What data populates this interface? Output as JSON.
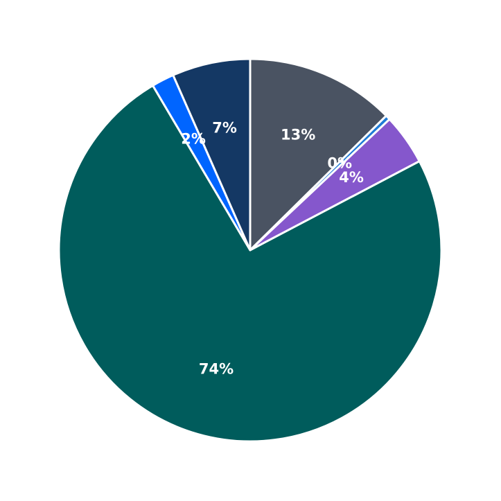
{
  "chart_data": {
    "type": "pie",
    "values": [
      12.6,
      0.4,
      4.3,
      74.2,
      1.9,
      6.6
    ],
    "value_labels": [
      "13%",
      "0%",
      "4%",
      "74%",
      "2%",
      "7%"
    ],
    "colors": [
      "#4a5362",
      "#1f7bd6",
      "#8557cc",
      "#005c5c",
      "#0065ff",
      "#143864"
    ]
  }
}
